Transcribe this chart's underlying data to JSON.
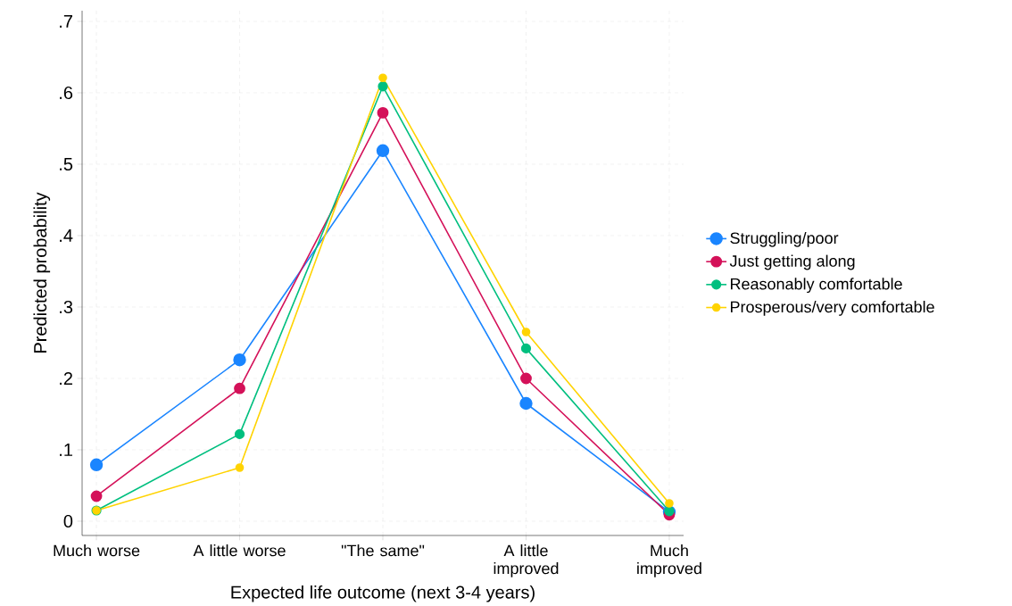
{
  "chart_data": {
    "type": "line",
    "xlabel": "Expected life outcome (next 3-4 years)",
    "ylabel": "Predicted probability",
    "categories": [
      "Much worse",
      "A little worse",
      "\"The same\"",
      "A little improved",
      "Much improved"
    ],
    "series": [
      {
        "name": "Struggling/poor",
        "color": "#1a85ff",
        "values": [
          0.079,
          0.226,
          0.519,
          0.165,
          0.013
        ]
      },
      {
        "name": "Just getting along",
        "color": "#d41159",
        "values": [
          0.035,
          0.186,
          0.572,
          0.2,
          0.009
        ]
      },
      {
        "name": "Reasonably comfortable",
        "color": "#00bf7f",
        "values": [
          0.015,
          0.122,
          0.609,
          0.242,
          0.014
        ]
      },
      {
        "name": "Prosperous/very comfortable",
        "color": "#ffd300",
        "values": [
          0.015,
          0.075,
          0.621,
          0.265,
          0.025
        ]
      }
    ],
    "ylim": [
      -0.02,
      0.715
    ],
    "yticks": [
      {
        "value": 0,
        "label": "0"
      },
      {
        "value": 0.1,
        "label": ".1"
      },
      {
        "value": 0.2,
        "label": ".2"
      },
      {
        "value": 0.3,
        "label": ".3"
      },
      {
        "value": 0.4,
        "label": ".4"
      },
      {
        "value": 0.5,
        "label": ".5"
      },
      {
        "value": 0.6,
        "label": ".6"
      },
      {
        "value": 0.7,
        "label": ".7"
      }
    ],
    "grid": true,
    "legend": "right",
    "marker": "circle",
    "line_style": "solid"
  }
}
